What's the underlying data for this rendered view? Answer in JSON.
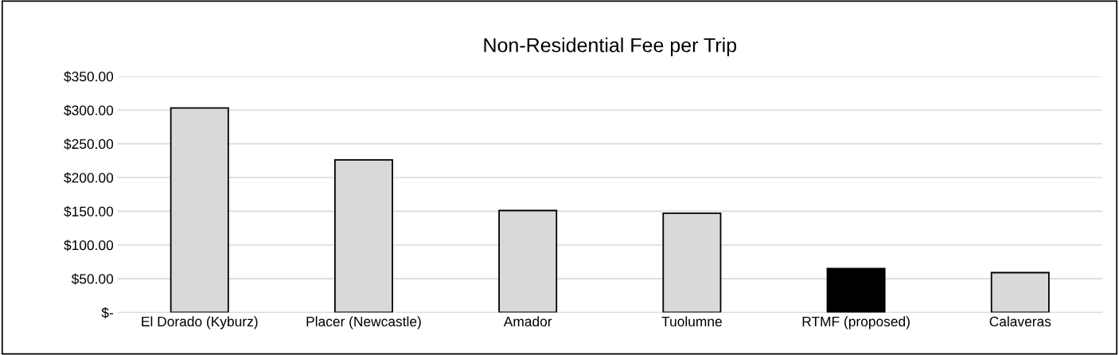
{
  "chart_data": {
    "type": "bar",
    "title": "Non-Residential Fee per Trip",
    "categories": [
      "El Dorado (Kyburz)",
      "Placer (Newcastle)",
      "Amador",
      "Tuolumne",
      "RTMF (proposed)",
      "Calaveras"
    ],
    "values": [
      303,
      226,
      151,
      147,
      65,
      59
    ],
    "colors": [
      "#d9d9d9",
      "#d9d9d9",
      "#d9d9d9",
      "#d9d9d9",
      "#000000",
      "#d9d9d9"
    ],
    "ylim": [
      0,
      350
    ],
    "yticks": [
      {
        "value": 0,
        "label": "$-"
      },
      {
        "value": 50,
        "label": "$50.00"
      },
      {
        "value": 100,
        "label": "$100.00"
      },
      {
        "value": 150,
        "label": "$150.00"
      },
      {
        "value": 200,
        "label": "$200.00"
      },
      {
        "value": 250,
        "label": "$250.00"
      },
      {
        "value": 300,
        "label": "$300.00"
      },
      {
        "value": 350,
        "label": "$350.00"
      }
    ],
    "grid": "y",
    "legend": false
  }
}
